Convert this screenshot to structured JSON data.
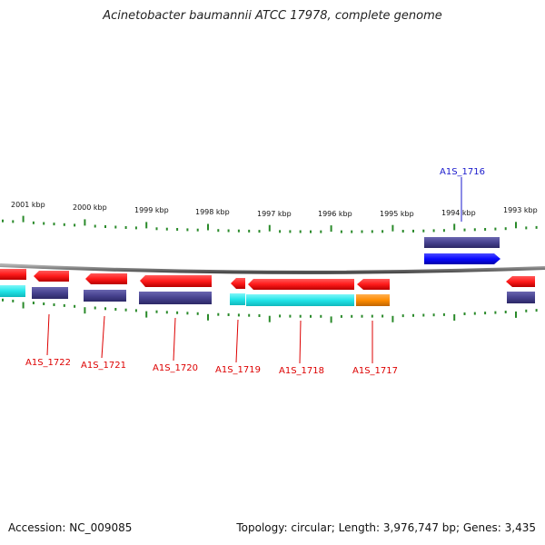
{
  "title": "Acinetobacter baumannii ATCC 17978, complete genome",
  "footer": {
    "accession": "Accession: NC_009085",
    "summary": "Topology: circular; Length: 3,976,747 bp; Genes: 3,435"
  },
  "colors": {
    "backbone": "#7a7a7a",
    "tick": "#2a8a2a",
    "gene_red": "#ff1a1a",
    "gene_blue": "#0a0aff",
    "feature_navy": "#47428f",
    "feature_cyan": "#22e5e8",
    "feature_orange": "#ff8c00",
    "label_red": "#dd0000",
    "label_blue": "#1a1acc"
  },
  "scale_labels": [
    "2001 kbp",
    "2000 kbp",
    "1999 kbp",
    "1998 kbp",
    "1997 kbp",
    "1996 kbp",
    "1995 kbp",
    "1994 kbp",
    "1993 kbp"
  ],
  "gene_labels": [
    {
      "id": "A1S_1716",
      "strand": "forward"
    },
    {
      "id": "A1S_1717",
      "strand": "reverse"
    },
    {
      "id": "A1S_1718",
      "strand": "reverse"
    },
    {
      "id": "A1S_1719",
      "strand": "reverse"
    },
    {
      "id": "A1S_1720",
      "strand": "reverse"
    },
    {
      "id": "A1S_1721",
      "strand": "reverse"
    },
    {
      "id": "A1S_1722",
      "strand": "reverse"
    }
  ]
}
